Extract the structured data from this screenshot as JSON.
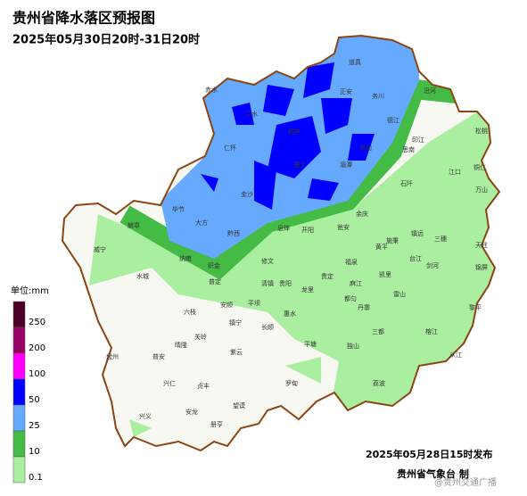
{
  "header": {
    "title": "贵州省降水落区预报图",
    "subtitle": "2025年05月30日20时-31日20时"
  },
  "legend": {
    "unit": "单位:mm",
    "levels": [
      250,
      200,
      100,
      50,
      25,
      10,
      0.1
    ],
    "colors": [
      "#4d0026",
      "#990066",
      "#ff00ff",
      "#0000ff",
      "#66aaff",
      "#44bb44",
      "#aaeea0"
    ]
  },
  "footer": {
    "issued": "2025年05月28日15时发布",
    "issuer": "贵州省气象台 制",
    "watermark": "@贵州交通广播"
  },
  "places": [
    "道真",
    "正安",
    "务川",
    "沿河",
    "德江",
    "印江",
    "思南",
    "松桃",
    "江口",
    "铜仁",
    "石阡",
    "万山",
    "凤冈",
    "湄潭",
    "遵义",
    "桐梓",
    "习水",
    "赤水",
    "仁怀",
    "金沙",
    "毕节",
    "大方",
    "黔西",
    "赫章",
    "威宁",
    "纳雍",
    "织金",
    "开阳",
    "息烽",
    "瓮安",
    "余庆",
    "施秉",
    "镇远",
    "三穗",
    "天柱",
    "锦屏",
    "黄平",
    "凯里",
    "福泉",
    "贵定",
    "龙里",
    "贵阳",
    "清镇",
    "修文",
    "平坝",
    "安顺",
    "普定",
    "水城",
    "六枝",
    "盘州",
    "关岭",
    "镇宁",
    "紫云",
    "晴隆",
    "普安",
    "兴仁",
    "贞丰",
    "兴义",
    "安龙",
    "册亨",
    "望谟",
    "长顺",
    "惠水",
    "罗甸",
    "平塘",
    "独山",
    "都匀",
    "麻江",
    "丹寨",
    "三都",
    "雷山",
    "台江",
    "剑河",
    "榕江",
    "黎平",
    "从江",
    "荔波"
  ]
}
